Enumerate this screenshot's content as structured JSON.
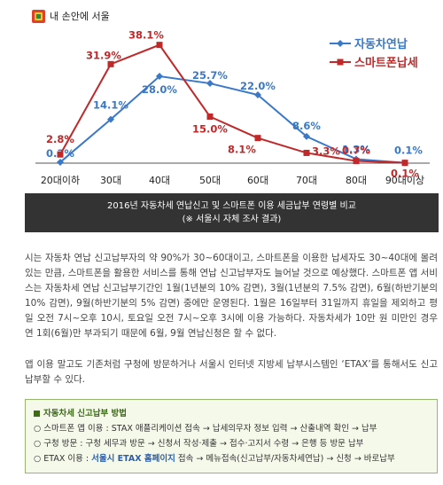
{
  "brand": {
    "name": "내 손안에 서울"
  },
  "chart_data": {
    "type": "line",
    "categories": [
      "20대이하",
      "30대",
      "40대",
      "50대",
      "60대",
      "70대",
      "80대",
      "90대이상"
    ],
    "series": [
      {
        "name": "자동차연납",
        "color": "#3a78c8",
        "marker": "diamond",
        "values": [
          0.3,
          14.1,
          28.0,
          25.7,
          22.0,
          8.6,
          1.3,
          0.1
        ],
        "labels": [
          "0.3%",
          "14.1%",
          "28.0%",
          "25.7%",
          "22.0%",
          "8.6%",
          "1.3%",
          "0.1%"
        ]
      },
      {
        "name": "스마트폰납세",
        "color": "#c0282a",
        "marker": "square",
        "values": [
          2.8,
          31.9,
          38.1,
          15.0,
          8.1,
          3.3,
          0.7,
          0.1
        ],
        "labels": [
          "2.8%",
          "31.9%",
          "38.1%",
          "15.0%",
          "8.1%",
          "3.3%",
          "0.7%",
          "0.1%"
        ]
      }
    ],
    "ylim": [
      0,
      40
    ],
    "legend_position": "top-right",
    "grid": false
  },
  "caption": {
    "line1": "2016년 자동차세 연납신고 및 스마트폰 이용 세금납부 연령별 비교",
    "line2": "(※ 서울시 자체 조사 결과)"
  },
  "paragraphs": {
    "p1": "시는 자동차 연납 신고납부자의 약 90%가 30~60대이고, 스마트폰을 이용한 납세자도 30~40대에 몰려있는 만큼, 스마트폰을 활용한 서비스를 통해 연납 신고납부자도 늘어날 것으로 예상했다. 스마트폰 앱 서비스는 자동차세 연납 신고납부기간인 1월(1년분의 10% 감면), 3월(1년분의 7.5% 감면), 6월(하반기분의 10% 감면), 9월(하반기분의 5% 감면) 중에만 운영된다. 1월은 16일부터 31일까지 휴일을 제외하고 평일 오전 7시~오후 10시, 토요일 오전 7시~오후 3시에 이용 가능하다. 자동차세가 10만 원 미만인 경우 연 1회(6월)만 부과되기 때문에 6월, 9월 연납신청은 할 수 없다.",
    "p2": "앱 이용 말고도 기존처럼 구청에 방문하거나 서울시 인터넷 지방세 납부시스템인 ‘ETAX’를 통해서도 신고납부할 수 있다."
  },
  "methods_box": {
    "title": "자동차세 신고납부 방법",
    "step1": "○ 스마트폰 앱 이용 : STAX 애플리케이션 접속 → 납세의무자 정보 입력 → 산출내역 확인 → 납부",
    "step2": "○ 구청 방문 : 구청 세무과 방문 → 신청서 작성·제출 → 접수·고지서 수령 → 은행 등 방문 납부",
    "step3_prefix": "○ ETAX 이용 : ",
    "step3_link": "서울시 ETAX 홈페이지",
    "step3_suffix": " 접속 → 메뉴접속(신고납부/자동차세연납) → 신청 → 바로납부"
  }
}
